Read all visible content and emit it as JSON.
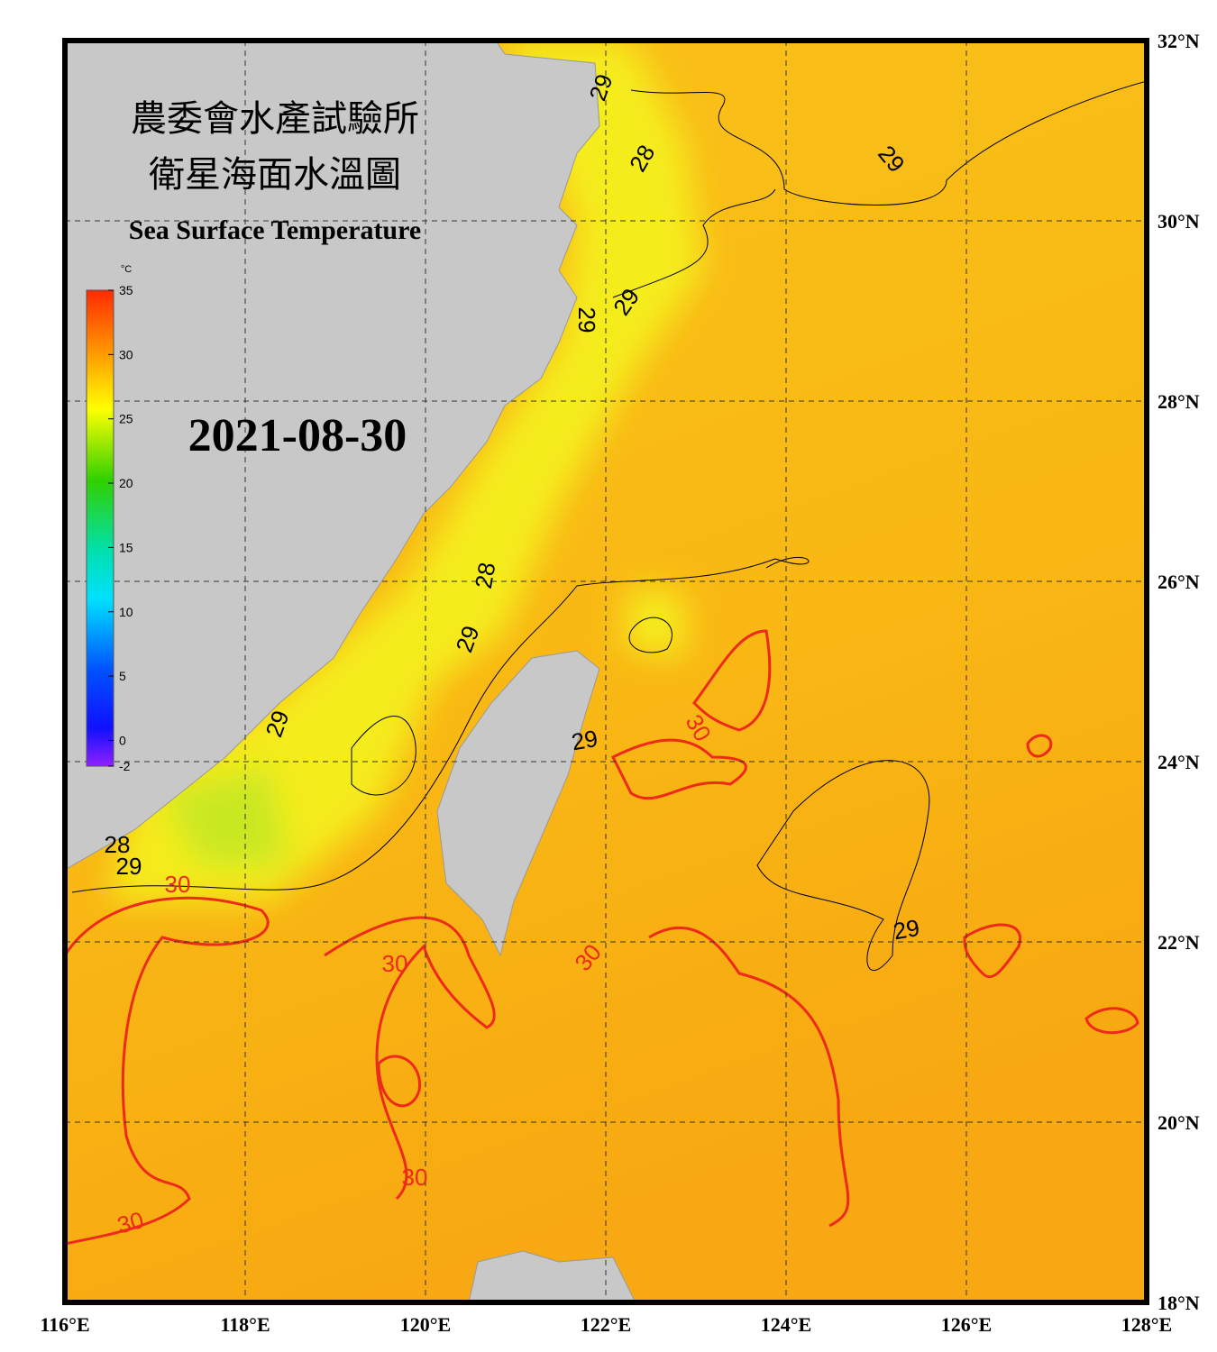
{
  "title_zh_1": "農委會水產試驗所",
  "title_zh_2": "衛星海面水溫圖",
  "title_en": "Sea Surface Temperature",
  "date": "2021-08-30",
  "colorbar": {
    "unit": "°C",
    "range": [
      -2,
      35
    ],
    "ticks": [
      35,
      30,
      25,
      20,
      15,
      10,
      5,
      0,
      -2
    ]
  },
  "lat_range": [
    18,
    32
  ],
  "lon_range": [
    116,
    128
  ],
  "lat_ticks": [
    {
      "value": 18,
      "label": "18°N"
    },
    {
      "value": 20,
      "label": "20°N"
    },
    {
      "value": 22,
      "label": "22°N"
    },
    {
      "value": 24,
      "label": "24°N"
    },
    {
      "value": 26,
      "label": "26°N"
    },
    {
      "value": 28,
      "label": "28°N"
    },
    {
      "value": 30,
      "label": "30°N"
    },
    {
      "value": 32,
      "label": "32°N"
    }
  ],
  "lon_ticks": [
    {
      "value": 116,
      "label": "116°E"
    },
    {
      "value": 118,
      "label": "118°E"
    },
    {
      "value": 120,
      "label": "120°E"
    },
    {
      "value": 122,
      "label": "122°E"
    },
    {
      "value": 124,
      "label": "124°E"
    },
    {
      "value": 126,
      "label": "126°E"
    },
    {
      "value": 128,
      "label": "128°E"
    }
  ],
  "contour_labels": [
    "29",
    "28",
    "29",
    "29",
    "29",
    "28",
    "29",
    "29",
    "28",
    "29",
    "29",
    "30",
    "30",
    "29",
    "30",
    "30",
    "30",
    "30"
  ]
}
